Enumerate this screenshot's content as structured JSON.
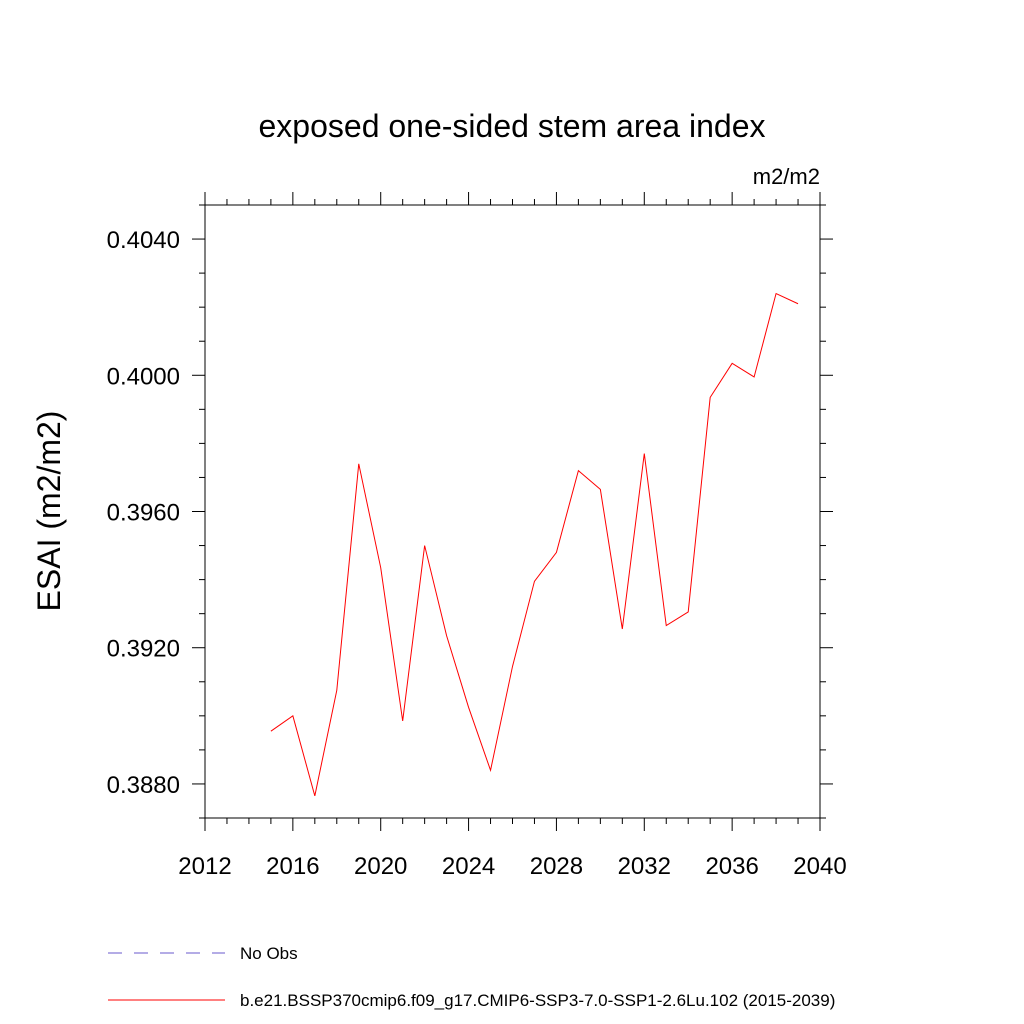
{
  "chart_data": {
    "type": "line",
    "title": "exposed one-sided stem area index",
    "units": "m2/m2",
    "ylabel": "ESAI  (m2/m2)",
    "xlabel": "",
    "xlim": [
      2012,
      2040
    ],
    "ylim": [
      0.387,
      0.405
    ],
    "x_ticks": [
      "2012",
      "2016",
      "2020",
      "2024",
      "2028",
      "2032",
      "2036",
      "2040"
    ],
    "y_ticks": [
      "0.3880",
      "0.3920",
      "0.3960",
      "0.4000",
      "0.4040"
    ],
    "x": [
      2015,
      2016,
      2017,
      2018,
      2019,
      2020,
      2021,
      2022,
      2023,
      2024,
      2025,
      2026,
      2027,
      2028,
      2029,
      2030,
      2031,
      2032,
      2033,
      2034,
      2035,
      2036,
      2037,
      2038,
      2039
    ],
    "series": [
      {
        "name": "b.e21.BSSP370cmip6.f09_g17.CMIP6-SSP3-7.0-SSP1-2.6Lu.102 (2015-2039)",
        "color": "#ff0000",
        "values": [
          0.38955,
          0.39,
          0.38765,
          0.39075,
          0.3974,
          0.39435,
          0.38985,
          0.395,
          0.39235,
          0.39025,
          0.3884,
          0.39145,
          0.39395,
          0.3948,
          0.3972,
          0.39665,
          0.39255,
          0.3977,
          0.39265,
          0.39305,
          0.39935,
          0.40035,
          0.39995,
          0.4024,
          0.4021
        ]
      }
    ],
    "legend": [
      {
        "label": "No Obs",
        "color": "#6a5acd",
        "style": "dashed"
      },
      {
        "label": "b.e21.BSSP370cmip6.f09_g17.CMIP6-SSP3-7.0-SSP1-2.6Lu.102 (2015-2039)",
        "color": "#ff0000",
        "style": "solid"
      }
    ],
    "legend_position": "bottom",
    "grid": false
  }
}
